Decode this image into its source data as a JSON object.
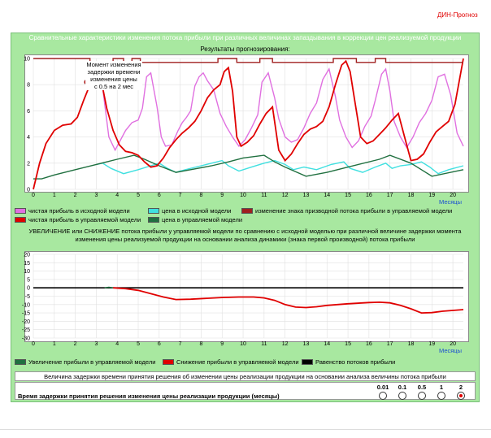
{
  "brand": "ДИН-Прогноз",
  "main_title": "Сравнительные характеристики изменения потока прибыли при различных величинах запаздывания в коррекции цен реализуемой продукции",
  "sub_title": "Результаты прогнозирования:",
  "annotation": [
    "Момент изменения",
    "задержки времени",
    "изменения цены",
    "с  0.5  на 2 мес"
  ],
  "legend1": [
    {
      "label": "чистая прибыль в исходной модели",
      "color": "#e070e0"
    },
    {
      "label": "цена в исходной модели",
      "color": "#40e0e0"
    },
    {
      "label": "изменение знака призводной потока прибыли в управляемой модели",
      "color": "#a02020"
    },
    {
      "label": "чистая прибыль в управляемой модели",
      "color": "#e00000"
    },
    {
      "label": "цена в управляемой модели",
      "color": "#207040"
    }
  ],
  "section2_title": "УВЕЛИЧЕНИЕ или  СНИЖЕНИЕ потока прибыли у управляемой модели по сравнению с исходной моделью при различной величине задержки момента изменения цены реализуемой продукции на основании анализа динамики (знака первой производной) потока прибыли",
  "legend2": [
    {
      "label": "Увеличение прибыли в управляемой модели",
      "color": "#207040"
    },
    {
      "label": "Снижение прибыли в управляемой модели",
      "color": "#e00000"
    },
    {
      "label": "Равенство потоков прибыли",
      "color": "#000000"
    }
  ],
  "table": {
    "header": "Величина задержки времени принятия решения об изменении цены реализации продукции на основании анализа величины потока прибыли",
    "row_label": "Время задержки принятия решения изменения цены реализации продукции (месяцы)",
    "options": [
      "0.01",
      "0.1",
      "0.5",
      "1",
      "2"
    ],
    "selected": "2"
  },
  "chart_data": [
    {
      "type": "line",
      "title": "Результаты прогнозирования:",
      "xlabel": "Месяцы",
      "xlim": [
        0,
        20.5
      ],
      "ylim": [
        0,
        10
      ],
      "xticks": [
        0,
        1,
        2,
        3,
        4,
        5,
        6,
        7,
        8,
        9,
        10,
        11,
        12,
        13,
        14,
        15,
        16,
        17,
        18,
        19,
        20
      ],
      "yticks": [
        0,
        2,
        4,
        6,
        8,
        10
      ],
      "grid": true,
      "series": [
        {
          "name": "чистая прибыль в исходной модели",
          "color": "#e070e0",
          "x": [
            3.3,
            3.6,
            3.9,
            4.1,
            4.4,
            4.7,
            5.0,
            5.2,
            5.4,
            5.6,
            5.9,
            6.1,
            6.3,
            6.6,
            6.9,
            7.1,
            7.3,
            7.5,
            7.7,
            7.9,
            8.1,
            8.3,
            8.6,
            8.9,
            9.2,
            9.5,
            9.8,
            10.1,
            10.4,
            10.7,
            10.9,
            11.2,
            11.5,
            11.7,
            12.0,
            12.3,
            12.6,
            12.9,
            13.2,
            13.5,
            13.8,
            14.1,
            14.4,
            14.6,
            14.9,
            15.2,
            15.5,
            15.8,
            16.1,
            16.3,
            16.6,
            16.8,
            17.0,
            17.2,
            17.5,
            17.8,
            18.1,
            18.4,
            18.7,
            19.0,
            19.3,
            19.6,
            19.9,
            20.2,
            20.5
          ],
          "y": [
            7.8,
            4.0,
            3.0,
            3.6,
            4.5,
            5.1,
            5.3,
            6.2,
            8.6,
            8.9,
            6.3,
            4.0,
            3.3,
            3.4,
            4.5,
            5.1,
            5.5,
            6.0,
            7.9,
            8.6,
            8.9,
            8.3,
            7.6,
            5.8,
            4.8,
            4.0,
            3.3,
            3.8,
            4.7,
            5.7,
            8.2,
            8.9,
            7.0,
            5.4,
            4.0,
            3.6,
            3.8,
            4.7,
            5.8,
            6.6,
            8.4,
            9.2,
            7.1,
            5.3,
            4.0,
            3.2,
            3.7,
            4.8,
            5.6,
            6.8,
            8.8,
            9.2,
            7.5,
            5.2,
            4.0,
            3.2,
            4.0,
            5.1,
            5.8,
            6.8,
            8.6,
            8.8,
            7.2,
            4.3,
            3.3
          ]
        },
        {
          "name": "цена в исходной модели",
          "color": "#40e0e0",
          "x": [
            3.0,
            3.3,
            3.7,
            4.3,
            5.0,
            5.6,
            6.0,
            6.4,
            6.8,
            7.0,
            7.5,
            8.0,
            8.5,
            9.0,
            9.3,
            9.8,
            10.4,
            11.0,
            11.5,
            12.0,
            12.4,
            12.9,
            13.5,
            14.2,
            14.8,
            15.1,
            15.7,
            16.3,
            16.8,
            17.1,
            17.5,
            18.0,
            18.5,
            18.9,
            19.3,
            19.8,
            20.5
          ],
          "y": [
            1.9,
            2.0,
            1.6,
            1.2,
            1.5,
            1.8,
            2.0,
            1.6,
            1.3,
            1.4,
            1.6,
            1.8,
            2.0,
            2.2,
            1.8,
            1.4,
            1.7,
            2.0,
            2.2,
            1.9,
            1.5,
            1.7,
            1.5,
            1.9,
            2.1,
            1.6,
            1.3,
            1.7,
            2.0,
            1.6,
            1.8,
            1.9,
            2.1,
            1.7,
            1.2,
            1.5,
            1.8
          ]
        },
        {
          "name": "цена в управляемой модели",
          "color": "#207040",
          "x": [
            0,
            0.4,
            1.0,
            2.0,
            3.0,
            4.0,
            4.8,
            5.3,
            6.0,
            6.8,
            7.5,
            8.5,
            9.3,
            10.0,
            11.0,
            11.5,
            12.0,
            13.0,
            14.0,
            15.0,
            16.5,
            17.0,
            18.0,
            18.5,
            19.0,
            20.5
          ],
          "y": [
            0.8,
            0.8,
            1.1,
            1.5,
            1.9,
            2.3,
            2.6,
            2.3,
            1.8,
            1.3,
            1.5,
            1.8,
            2.1,
            2.4,
            2.6,
            2.1,
            1.7,
            1.0,
            1.3,
            1.7,
            2.3,
            2.6,
            2.0,
            1.5,
            1.0,
            1.5
          ]
        },
        {
          "name": "чистая прибыль в управляемой модели",
          "color": "#e00000",
          "x": [
            0,
            0.3,
            0.6,
            1.0,
            1.4,
            1.8,
            2.1,
            2.4,
            2.7,
            2.9,
            3.1,
            3.3,
            3.5,
            3.8,
            4.1,
            4.4,
            4.7,
            5.0,
            5.3,
            5.6,
            5.9,
            6.2,
            6.5,
            6.8,
            7.1,
            7.4,
            7.7,
            8.0,
            8.3,
            8.6,
            8.9,
            9.1,
            9.3,
            9.5,
            9.7,
            9.9,
            10.2,
            10.5,
            10.8,
            11.1,
            11.4,
            11.7,
            12.0,
            12.3,
            12.6,
            12.9,
            13.2,
            13.5,
            13.8,
            14.1,
            14.4,
            14.7,
            14.9,
            15.1,
            15.3,
            15.6,
            15.9,
            16.2,
            16.5,
            16.8,
            17.1,
            17.4,
            17.7,
            18.0,
            18.3,
            18.6,
            18.9,
            19.2,
            19.5,
            19.8,
            20.1,
            20.5
          ],
          "y": [
            0.0,
            2.0,
            3.5,
            4.5,
            4.9,
            5.0,
            5.5,
            6.8,
            8.0,
            8.5,
            8.4,
            7.8,
            6.2,
            4.5,
            3.4,
            2.9,
            2.8,
            2.6,
            2.1,
            1.7,
            1.8,
            2.4,
            3.2,
            3.8,
            4.3,
            4.7,
            5.2,
            6.0,
            7.0,
            7.6,
            8.0,
            9.0,
            9.3,
            7.5,
            4.0,
            3.3,
            3.6,
            4.1,
            5.0,
            5.8,
            6.3,
            3.0,
            2.2,
            2.7,
            3.5,
            4.2,
            4.6,
            4.8,
            5.2,
            6.3,
            8.0,
            9.5,
            9.8,
            9.0,
            7.0,
            4.0,
            3.5,
            3.7,
            4.2,
            4.7,
            5.3,
            5.8,
            4.0,
            2.2,
            2.3,
            2.7,
            3.6,
            4.4,
            4.8,
            5.2,
            6.5,
            10.0
          ]
        }
      ]
    },
    {
      "type": "line",
      "xlabel": "Месяцы",
      "xlim": [
        0,
        20.5
      ],
      "ylim": [
        -30,
        20
      ],
      "xticks": [
        0,
        1,
        2,
        3,
        4,
        5,
        6,
        7,
        8,
        9,
        10,
        11,
        12,
        13,
        14,
        15,
        16,
        17,
        18,
        19,
        20
      ],
      "yticks": [
        -30,
        -25,
        -20,
        -15,
        -10,
        -5,
        0,
        5,
        10,
        15,
        20
      ],
      "grid": true,
      "series": [
        {
          "name": "Равенство потоков прибыли",
          "color": "#000000",
          "x": [
            0,
            20.5
          ],
          "y": [
            0,
            0
          ]
        },
        {
          "name": "Увеличение прибыли в управляемой модели",
          "color": "#207040",
          "x": [
            3.4,
            3.6,
            3.8
          ],
          "y": [
            0,
            0.4,
            0
          ]
        },
        {
          "name": "Снижение прибыли в управляемой модели",
          "color": "#e00000",
          "x": [
            3.8,
            4.4,
            5.0,
            5.6,
            6.2,
            6.8,
            7.5,
            8.2,
            9.0,
            9.8,
            10.5,
            11.0,
            11.5,
            12.0,
            12.5,
            13.0,
            13.5,
            14.0,
            15.0,
            16.0,
            16.5,
            17.0,
            17.5,
            18.0,
            18.5,
            19.0,
            19.5,
            20.0,
            20.5
          ],
          "y": [
            0,
            -0.5,
            -1.5,
            -3.5,
            -5.5,
            -7.0,
            -6.8,
            -6.3,
            -5.8,
            -5.5,
            -5.5,
            -6.0,
            -7.5,
            -10.0,
            -11.5,
            -11.8,
            -11.3,
            -10.5,
            -9.5,
            -8.8,
            -8.6,
            -9.0,
            -10.5,
            -12.5,
            -15.0,
            -14.8,
            -14.0,
            -13.5,
            -13.0
          ]
        }
      ]
    }
  ]
}
